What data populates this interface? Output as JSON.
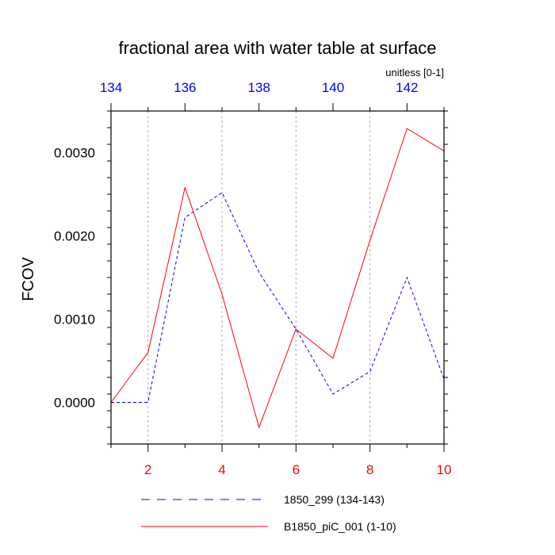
{
  "chart_data": {
    "type": "line",
    "title": "fractional area with water table at surface",
    "units_label": "unitless [0-1]",
    "ylabel": "FCOV",
    "ylim": [
      -0.0005,
      0.0035
    ],
    "y_ticks": [
      0.0,
      0.001,
      0.002,
      0.003
    ],
    "y_tick_labels": [
      "0.0000",
      "0.0010",
      "0.0020",
      "0.0030"
    ],
    "x_bottom": {
      "lim": [
        1,
        10
      ],
      "ticks": [
        2,
        4,
        6,
        8,
        10
      ],
      "tick_labels": [
        "2",
        "4",
        "6",
        "8",
        "10"
      ],
      "color": "#ff0000"
    },
    "x_top": {
      "lim": [
        134,
        143
      ],
      "ticks": [
        134,
        136,
        138,
        140,
        142
      ],
      "tick_labels": [
        "134",
        "136",
        "138",
        "140",
        "142"
      ],
      "color": "#0000ff"
    },
    "grid": "vertical dashed at odd bottom-axis positions",
    "legend_position": "bottom",
    "series": [
      {
        "name": "1850_299 (134-143)",
        "axis": "top",
        "color": "#0000ff",
        "dash": "dashed",
        "x": [
          134,
          135,
          136,
          137,
          138,
          139,
          140,
          141,
          142,
          143
        ],
        "y": [
          0.0,
          0.0,
          0.00222,
          0.00252,
          0.00156,
          0.00088,
          0.0001,
          0.00037,
          0.0015,
          0.00028
        ]
      },
      {
        "name": "B1850_piC_001 (1-10)",
        "axis": "bottom",
        "color": "#ff0000",
        "dash": "solid",
        "x": [
          1,
          2,
          3,
          4,
          5,
          6,
          7,
          8,
          9,
          10
        ],
        "y": [
          0.0,
          0.0006,
          0.00258,
          0.0013,
          -0.0003,
          0.00088,
          0.00053,
          0.00195,
          0.00329,
          0.00302
        ]
      }
    ]
  }
}
